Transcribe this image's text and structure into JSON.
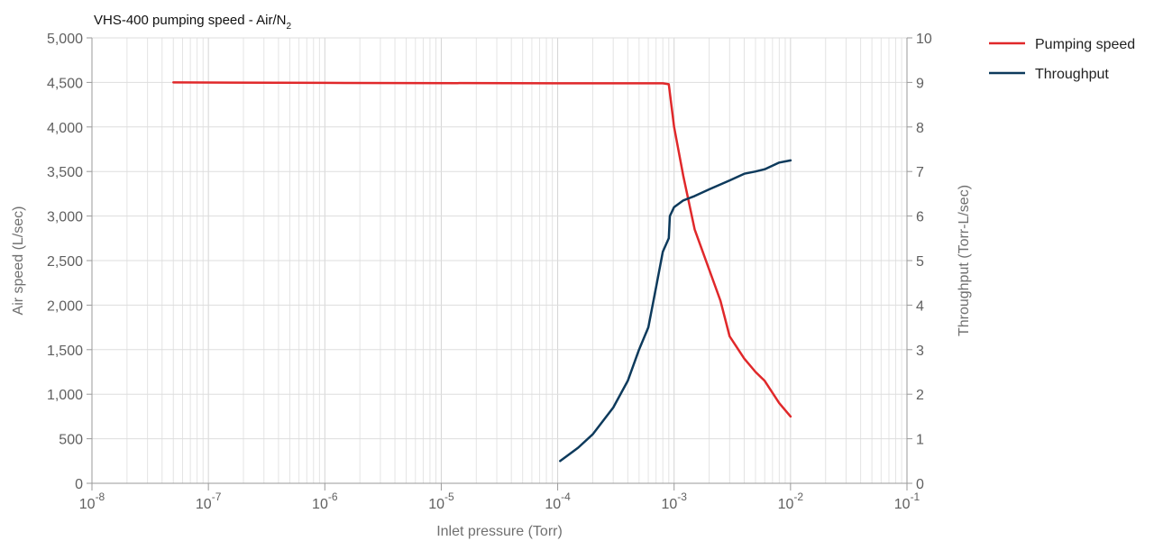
{
  "chart_data": {
    "type": "line",
    "title": "VHS-400 pumping speed - Air/N",
    "title_subscript": "2",
    "xlabel": "Inlet pressure (Torr)",
    "ylabel": "Air speed (L/sec)",
    "y2label": "Throughput (Torr-L/sec)",
    "xscale": "log",
    "xlim": [
      1e-08,
      0.1
    ],
    "x_ticks": [
      {
        "base": "10",
        "exp": "-8"
      },
      {
        "base": "10",
        "exp": "-7"
      },
      {
        "base": "10",
        "exp": "-6"
      },
      {
        "base": "10",
        "exp": "-5"
      },
      {
        "base": "10",
        "exp": "-4"
      },
      {
        "base": "10",
        "exp": "-3"
      },
      {
        "base": "10",
        "exp": "-2"
      },
      {
        "base": "10",
        "exp": "-1"
      }
    ],
    "ylim": [
      0,
      5000
    ],
    "y_ticks": [
      "0",
      "500",
      "1,000",
      "1,500",
      "2,000",
      "2,500",
      "3,000",
      "3,500",
      "4,000",
      "4,500",
      "5,000"
    ],
    "y2lim": [
      0,
      10
    ],
    "y2_ticks": [
      "0",
      "1",
      "2",
      "3",
      "4",
      "5",
      "6",
      "7",
      "8",
      "9",
      "10"
    ],
    "grid": true,
    "legend_position": "top-right",
    "series": [
      {
        "name": "Pumping speed",
        "axis": "left",
        "color": "#e0282a",
        "x": [
          5e-08,
          1e-06,
          0.0001,
          0.0008,
          0.0009,
          0.001,
          0.0012,
          0.0015,
          0.002,
          0.0025,
          0.003,
          0.004,
          0.005,
          0.006,
          0.008,
          0.01
        ],
        "y": [
          4500,
          4495,
          4490,
          4490,
          4480,
          4000,
          3450,
          2850,
          2400,
          2050,
          1650,
          1400,
          1250,
          1150,
          900,
          750
        ]
      },
      {
        "name": "Throughput",
        "axis": "right",
        "color": "#0d3a5c",
        "x": [
          0.000105,
          0.00015,
          0.0002,
          0.0003,
          0.0004,
          0.0005,
          0.0006,
          0.0007,
          0.0008,
          0.0009,
          0.00092,
          0.001,
          0.0012,
          0.0015,
          0.002,
          0.003,
          0.004,
          0.005,
          0.006,
          0.008,
          0.01
        ],
        "y": [
          0.5,
          0.8,
          1.1,
          1.7,
          2.3,
          3.0,
          3.5,
          4.4,
          5.2,
          5.5,
          6.0,
          6.2,
          6.35,
          6.45,
          6.6,
          6.8,
          6.95,
          7.0,
          7.05,
          7.2,
          7.25
        ]
      }
    ]
  }
}
